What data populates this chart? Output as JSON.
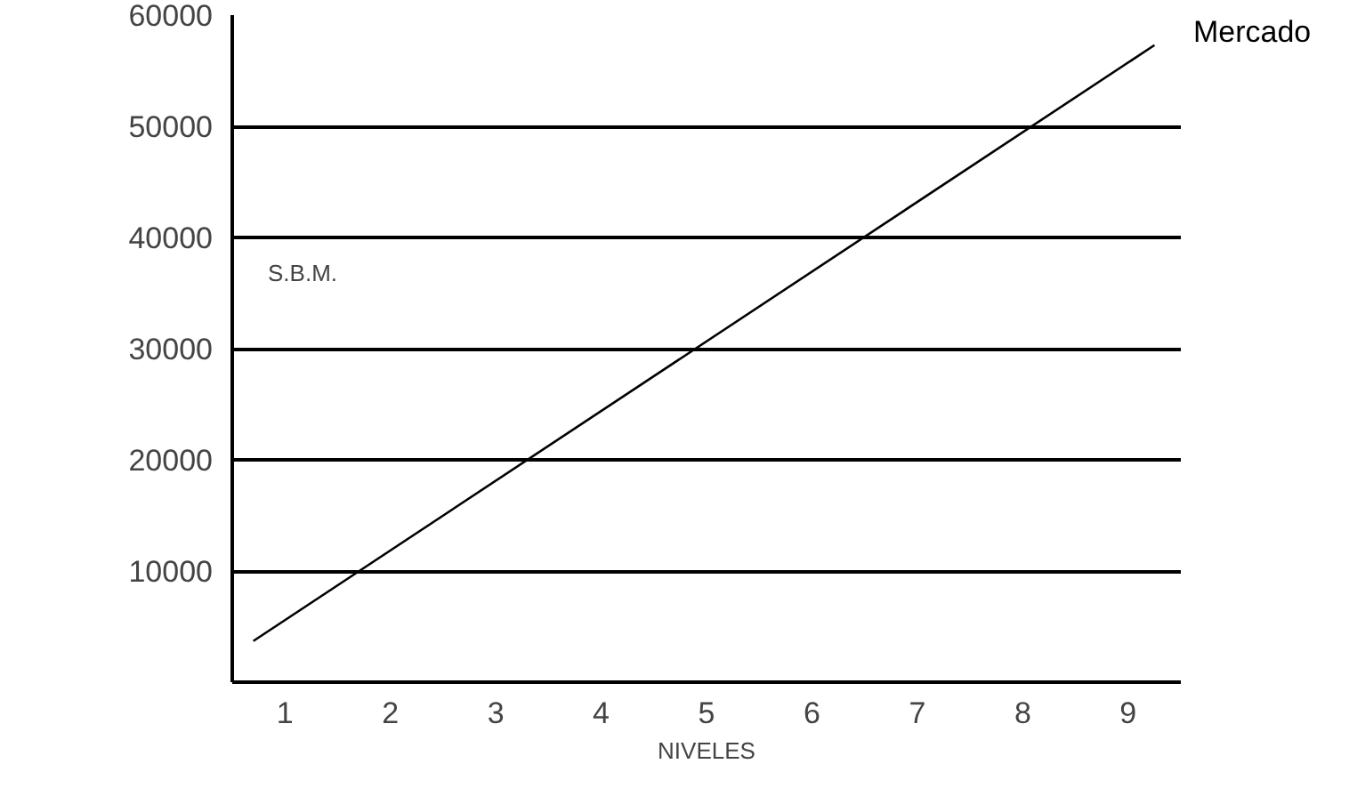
{
  "chart_data": {
    "type": "line",
    "xlabel": "NIVELES",
    "ylabel": "S.B.M.",
    "series": [
      {
        "name": "Mercado",
        "color": "#000000",
        "x": [
          0.7,
          9.25
        ],
        "values": [
          3700,
          57300
        ]
      }
    ],
    "xlim": [
      0.5,
      9.5
    ],
    "xticks": [
      1,
      2,
      3,
      4,
      5,
      6,
      7,
      8,
      9
    ],
    "ylim": [
      0,
      60000
    ],
    "yticks": [
      10000,
      20000,
      30000,
      40000,
      50000,
      60000
    ],
    "grid": "y",
    "marker": "none",
    "line_style": "solid"
  }
}
